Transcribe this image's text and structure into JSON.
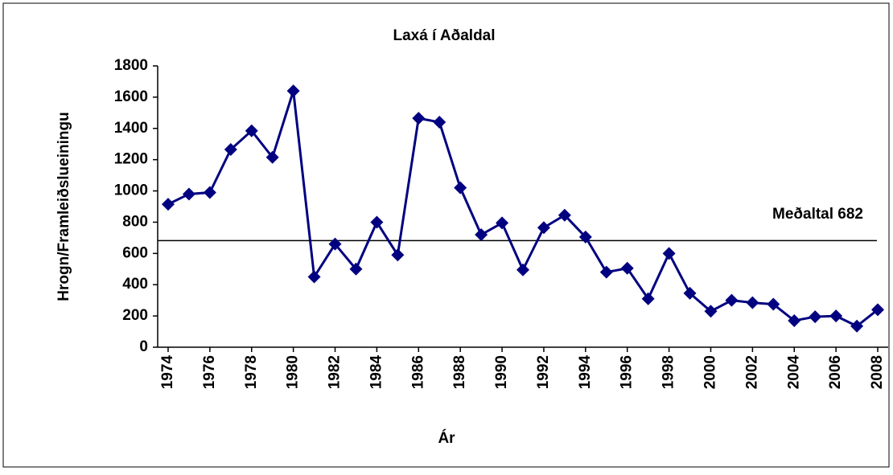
{
  "chart_data": {
    "type": "line",
    "title": "Laxá í Aðaldal",
    "x_label": "Ár",
    "y_label": "Hrogn/Framleiðslueiningu",
    "x": [
      1974,
      1975,
      1976,
      1977,
      1978,
      1979,
      1980,
      1981,
      1982,
      1983,
      1984,
      1985,
      1986,
      1987,
      1988,
      1989,
      1990,
      1991,
      1992,
      1993,
      1994,
      1995,
      1996,
      1997,
      1998,
      1999,
      2000,
      2001,
      2002,
      2003,
      2004,
      2005,
      2006,
      2007,
      2008
    ],
    "series": [
      {
        "name": "Laxá í Aðaldal",
        "color": "#000080",
        "values": [
          915,
          980,
          990,
          1265,
          1385,
          1215,
          1640,
          450,
          660,
          500,
          800,
          590,
          1465,
          1440,
          1020,
          720,
          795,
          495,
          765,
          845,
          705,
          480,
          505,
          310,
          600,
          345,
          230,
          300,
          285,
          275,
          170,
          195,
          200,
          135,
          240
        ]
      }
    ],
    "mean": {
      "value": 682,
      "label": "Meðaltal 682"
    },
    "xlim": [
      1973.5,
      2008.5
    ],
    "xticks": [
      1974,
      1976,
      1978,
      1980,
      1982,
      1984,
      1986,
      1988,
      1990,
      1992,
      1994,
      1996,
      1998,
      2000,
      2002,
      2004,
      2006,
      2008
    ],
    "ylim": [
      0,
      1800
    ],
    "yticks": [
      0,
      200,
      400,
      600,
      800,
      1000,
      1200,
      1400,
      1600,
      1800
    ]
  }
}
